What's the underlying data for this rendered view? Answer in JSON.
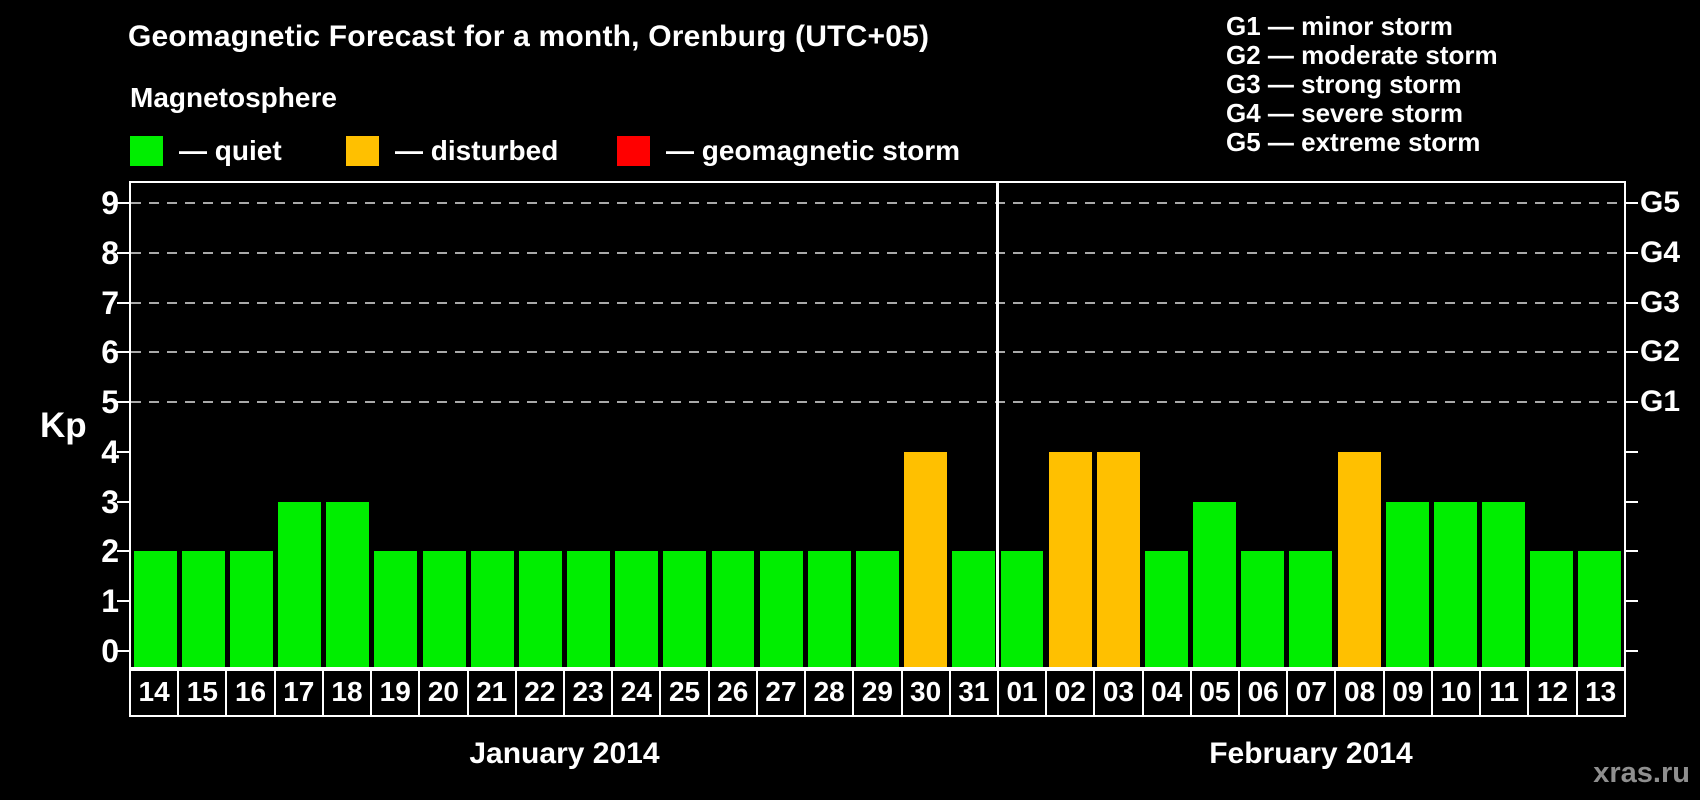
{
  "header": {
    "title": "Geomagnetic Forecast for a month, Orenburg (UTC+05)",
    "legend_title": "Magnetosphere",
    "legend": [
      {
        "name": "quiet",
        "label": "— quiet",
        "color": "#00ee00"
      },
      {
        "name": "disturbed",
        "label": "— disturbed",
        "color": "#ffc000"
      },
      {
        "name": "geomagnetic-storm",
        "label": "— geomagnetic storm",
        "color": "#ff0000"
      }
    ],
    "g_scale_legend": [
      "G1 — minor storm",
      "G2 — moderate storm",
      "G3 — strong storm",
      "G4 — severe storm",
      "G5 — extreme storm"
    ]
  },
  "watermark": "xras.ru",
  "chart_data": {
    "type": "bar",
    "title": "Geomagnetic Forecast for a month, Orenburg (UTC+05)",
    "ylabel": "Kp",
    "ylim": [
      0,
      9
    ],
    "yticks": [
      0,
      1,
      2,
      3,
      4,
      5,
      6,
      7,
      8,
      9
    ],
    "gridlines_at_kp": [
      5,
      6,
      7,
      8,
      9
    ],
    "grid": "dashed horizontal at G-storm levels only",
    "legend_position": "top",
    "right_axis": [
      {
        "kp": 5,
        "label": "G1"
      },
      {
        "kp": 6,
        "label": "G2"
      },
      {
        "kp": 7,
        "label": "G3"
      },
      {
        "kp": 8,
        "label": "G4"
      },
      {
        "kp": 9,
        "label": "G5"
      }
    ],
    "status_colors": {
      "quiet": "#00ee00",
      "disturbed": "#ffc000",
      "storm": "#ff0000"
    },
    "months": [
      {
        "label": "January 2014",
        "days": [
          "14",
          "15",
          "16",
          "17",
          "18",
          "19",
          "20",
          "21",
          "22",
          "23",
          "24",
          "25",
          "26",
          "27",
          "28",
          "29",
          "30",
          "31"
        ]
      },
      {
        "label": "February 2014",
        "days": [
          "01",
          "02",
          "03",
          "04",
          "05",
          "06",
          "07",
          "08",
          "09",
          "10",
          "11",
          "12",
          "13"
        ]
      }
    ],
    "categories": [
      "14",
      "15",
      "16",
      "17",
      "18",
      "19",
      "20",
      "21",
      "22",
      "23",
      "24",
      "25",
      "26",
      "27",
      "28",
      "29",
      "30",
      "31",
      "01",
      "02",
      "03",
      "04",
      "05",
      "06",
      "07",
      "08",
      "09",
      "10",
      "11",
      "12",
      "13"
    ],
    "values": [
      2,
      2,
      2,
      3,
      3,
      2,
      2,
      2,
      2,
      2,
      2,
      2,
      2,
      2,
      2,
      2,
      4,
      2,
      2,
      4,
      4,
      2,
      3,
      2,
      2,
      4,
      3,
      3,
      3,
      2,
      2
    ],
    "statuses": [
      "quiet",
      "quiet",
      "quiet",
      "quiet",
      "quiet",
      "quiet",
      "quiet",
      "quiet",
      "quiet",
      "quiet",
      "quiet",
      "quiet",
      "quiet",
      "quiet",
      "quiet",
      "quiet",
      "disturbed",
      "quiet",
      "quiet",
      "disturbed",
      "disturbed",
      "quiet",
      "quiet",
      "quiet",
      "quiet",
      "disturbed",
      "quiet",
      "quiet",
      "quiet",
      "quiet",
      "quiet"
    ]
  }
}
